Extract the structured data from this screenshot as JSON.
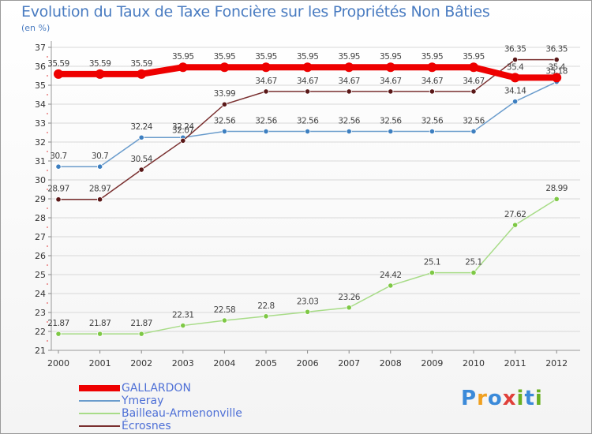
{
  "page": {
    "title": "Evolution du Taux de Taxe Foncière sur les Propriétés Non Bâties",
    "unit_label": "(en %)",
    "logo": {
      "letters": [
        "P",
        "r",
        "o",
        "x",
        "i",
        "t",
        "i"
      ],
      "colors": [
        "#3b8ad9",
        "#f0a020",
        "#3b8ad9",
        "#e0403a",
        "#6ab023",
        "#3b8ad9",
        "#6ab023"
      ]
    }
  },
  "chart_data": {
    "type": "line",
    "title": "Evolution du Taux de Taxe Foncière sur les Propriétés Non Bâties",
    "ylabel": "(en %)",
    "xlabel": "",
    "ylim": [
      21,
      37
    ],
    "yticks": [
      "21",
      "22",
      "23",
      "24",
      "25",
      "26",
      "27",
      "28",
      "29",
      "30",
      "31",
      "32",
      "33",
      "34",
      "35",
      "36",
      "37"
    ],
    "categories": [
      "2000",
      "2001",
      "2002",
      "2003",
      "2004",
      "2005",
      "2006",
      "2007",
      "2008",
      "2009",
      "2010",
      "2011",
      "2012"
    ],
    "series": [
      {
        "name": "GALLARDON",
        "color": "#ee0000",
        "emphasis": true,
        "values": [
          35.59,
          35.59,
          35.59,
          35.95,
          35.95,
          35.95,
          35.95,
          35.95,
          35.95,
          35.95,
          35.95,
          35.4,
          35.4
        ],
        "labels": [
          "35.59",
          "35.59",
          "35.59",
          "35.95",
          "35.95",
          "35.95",
          "35.95",
          "35.95",
          "35.95",
          "35.95",
          "35.95",
          "35.4",
          "35.4"
        ]
      },
      {
        "name": "Ymeray",
        "color": "#6a9ccc",
        "marker": "#3d7fc0",
        "values": [
          30.7,
          30.7,
          32.24,
          32.24,
          32.56,
          32.56,
          32.56,
          32.56,
          32.56,
          32.56,
          32.56,
          34.14,
          35.18
        ],
        "labels": [
          "30.7",
          "30.7",
          "32.24",
          "32.24",
          "32.56",
          "32.56",
          "32.56",
          "32.56",
          "32.56",
          "32.56",
          "32.56",
          "34.14",
          "35.18"
        ]
      },
      {
        "name": "Bailleau-Armenonville",
        "color": "#a8dc88",
        "marker": "#7ec845",
        "values": [
          21.87,
          21.87,
          21.87,
          22.31,
          22.58,
          22.8,
          23.03,
          23.26,
          24.42,
          25.1,
          25.1,
          27.62,
          28.99
        ],
        "labels": [
          "21.87",
          "21.87",
          "21.87",
          "22.31",
          "22.58",
          "22.8",
          "23.03",
          "23.26",
          "24.42",
          "25.1",
          "25.1",
          "27.62",
          "28.99"
        ]
      },
      {
        "name": "Écrosnes",
        "color": "#7a3030",
        "marker": "#5a1818",
        "values": [
          28.97,
          28.97,
          30.54,
          32.07,
          33.99,
          34.67,
          34.67,
          34.67,
          34.67,
          34.67,
          34.67,
          36.35,
          36.35
        ],
        "labels": [
          "28.97",
          "28.97",
          "30.54",
          "32.07",
          "33.99",
          "34.67",
          "34.67",
          "34.67",
          "34.67",
          "34.67",
          "34.67",
          "36.35",
          "36.35"
        ]
      }
    ],
    "legend_position": "bottom-left"
  }
}
